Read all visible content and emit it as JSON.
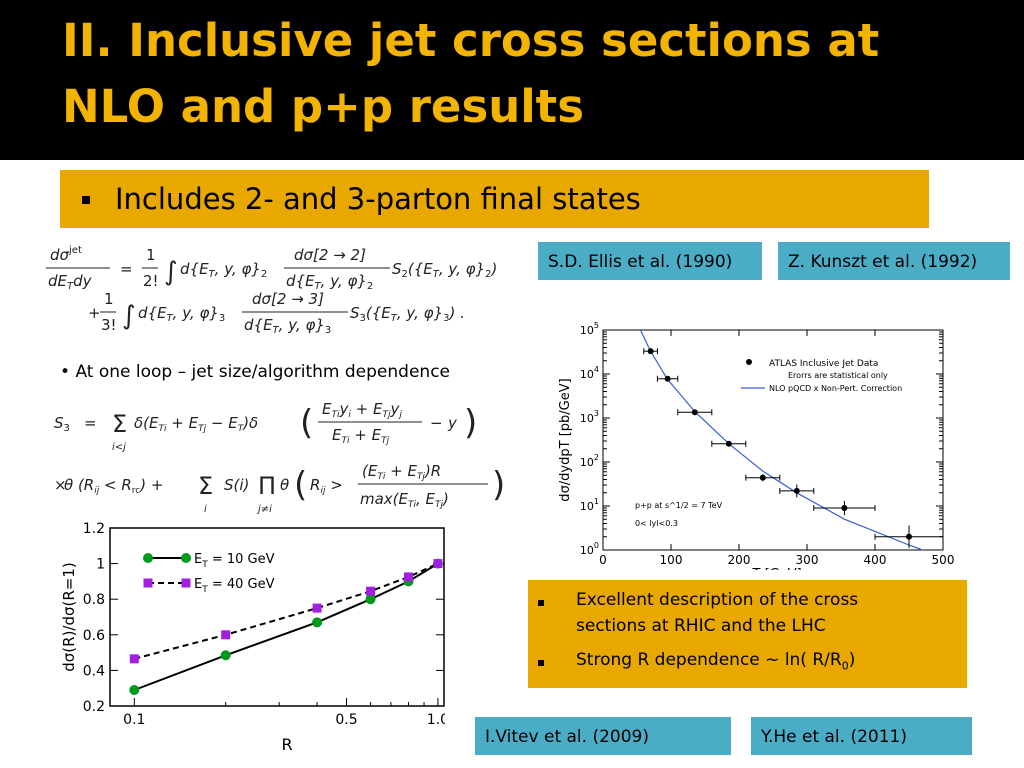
{
  "slide": {
    "title_line1": "II. Inclusive jet cross sections at",
    "title_line2": "NLO and p+p results",
    "bullet": "Includes 2- and 3-parton final states",
    "loop_note": "At one loop – jet size/algorithm dependence",
    "refs": {
      "ellis": "S.D. Ellis et al. (1990)",
      "kunszt": "Z. Kunszt et al. (1992)",
      "vitev": "I.Vitev et al. (2009)",
      "he": "Y.He et al. (2011)"
    },
    "results_box": {
      "item1_line1": "Excellent description of the cross",
      "item1_line2": "sections at RHIC and the LHC",
      "item2_text": "Strong R dependence ~ ln( R/R",
      "item2_sub": "0",
      "item2_close": ")"
    },
    "colors": {
      "title": "#f2b400",
      "accent_box": "#e8a800",
      "ref_box": "#4bacc6",
      "background_top": "#000000",
      "background_main": "#ffffff"
    }
  },
  "equations": {
    "eq1_lhs": "dσ^jet / dE_T dy",
    "eq1_term1": "= 1/2! ∫ d{E_T, y, φ}_2 dσ[2→2]/d{E_T, y, φ}_2 S_2({E_T, y, φ}_2)",
    "eq1_term2": "+ 1/3! ∫ d{E_T, y, φ}_3 dσ[2→3]/d{E_T, y, φ}_3 S_3({E_T, y, φ}_3) .",
    "eq2_line1": "S_3 = Σ_{i<j} δ(E_Ti + E_Tj − E_T) δ( (E_Ti y_i + E_Tj y_j)/(E_Ti + E_Tj) − y )",
    "eq2_line2": "×θ(R_ij < R_rc) + Σ_i S(i) Π_{j≠i} θ( R_ij > (E_Ti + E_Tj)R / max(E_Ti, E_Tj) )"
  },
  "chart_data": [
    {
      "type": "scatter",
      "title": "",
      "xlabel": "pT [GeV]",
      "ylabel": "dσ/dydpT [pb/GeV]",
      "xlim": [
        0,
        500
      ],
      "ylim": [
        1,
        100000
      ],
      "yscale": "log",
      "xticks": [
        "0",
        "100",
        "200",
        "300",
        "400",
        "500"
      ],
      "yticks": [
        "10^0",
        "10^1",
        "10^2",
        "10^3",
        "10^4",
        "10^5"
      ],
      "legend": [
        {
          "label": "ATLAS Inclusive Jet Data",
          "marker": "dot"
        },
        {
          "label": "Erorrs are statistical only",
          "marker": "none"
        },
        {
          "label": "NLO pQCD x Non-Pert. Correction",
          "marker": "line"
        }
      ],
      "annotations": [
        "p+p at s^1/2 = 7 TeV",
        "0< lyl<0.3"
      ],
      "series": [
        {
          "name": "ATLAS Inclusive Jet Data",
          "points": [
            {
              "x": 70,
              "y": 33000,
              "xerr": 10,
              "yerr_factor": 1.12
            },
            {
              "x": 95,
              "y": 7800,
              "xerr": 15,
              "yerr_factor": 1.12
            },
            {
              "x": 135,
              "y": 1350,
              "xerr": 25,
              "yerr_factor": 1.12
            },
            {
              "x": 185,
              "y": 260,
              "xerr": 25,
              "yerr_factor": 1.12
            },
            {
              "x": 235,
              "y": 44,
              "xerr": 25,
              "yerr_factor": 1.2
            },
            {
              "x": 285,
              "y": 22,
              "xerr": 25,
              "yerr_factor": 1.4
            },
            {
              "x": 355,
              "y": 9,
              "xerr": 45,
              "yerr_factor": 1.45
            },
            {
              "x": 450,
              "y": 2,
              "xerr": 50,
              "yerr_factor": 1.8
            }
          ]
        },
        {
          "name": "NLO pQCD x Non-Pert. Correction",
          "curve": [
            {
              "x": 55,
              "y": 100000
            },
            {
              "x": 70,
              "y": 33000
            },
            {
              "x": 95,
              "y": 7500
            },
            {
              "x": 135,
              "y": 1400
            },
            {
              "x": 185,
              "y": 260
            },
            {
              "x": 235,
              "y": 62
            },
            {
              "x": 285,
              "y": 20
            },
            {
              "x": 355,
              "y": 5
            },
            {
              "x": 450,
              "y": 1.3
            },
            {
              "x": 470,
              "y": 1
            }
          ]
        }
      ],
      "grid": false,
      "legend_placement": "top-right"
    },
    {
      "type": "line",
      "title": "",
      "xlabel": "R",
      "ylabel": "dσ(R)/dσ(R=1)",
      "xscale": "log",
      "xlim": [
        0.1,
        1.0
      ],
      "ylim": [
        0.2,
        1.2
      ],
      "xticks": [
        "0.1",
        "0.5",
        "1.0"
      ],
      "yticks": [
        "0.2",
        "0.4",
        "0.6",
        "0.8",
        "1",
        "1.2"
      ],
      "series": [
        {
          "name": "E_T = 10 GeV",
          "color": "#009a1a",
          "marker": "circle",
          "style": "solid",
          "x": [
            0.1,
            0.2,
            0.4,
            0.6,
            0.8,
            1.0
          ],
          "values": [
            0.29,
            0.485,
            0.67,
            0.8,
            0.9,
            1.0
          ]
        },
        {
          "name": "E_T = 40 GeV",
          "color": "#a21fe0",
          "marker": "square",
          "style": "dashed",
          "x": [
            0.1,
            0.2,
            0.4,
            0.6,
            0.8,
            1.0
          ],
          "values": [
            0.465,
            0.6,
            0.75,
            0.845,
            0.925,
            1.0
          ]
        }
      ],
      "legend_labels": [
        {
          "main": "E",
          "sub": "T",
          "rest": " = 10 GeV"
        },
        {
          "main": "E",
          "sub": "T",
          "rest": " = 40 GeV"
        }
      ],
      "grid": false,
      "legend_placement": "top-left"
    }
  ]
}
